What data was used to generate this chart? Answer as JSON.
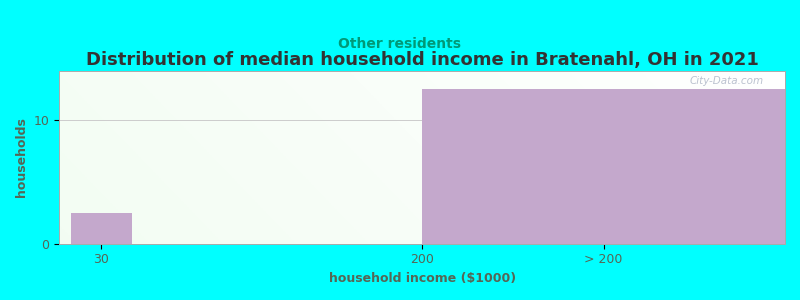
{
  "title": "Distribution of median household income in Bratenahl, OH in 2021",
  "subtitle": "Other residents",
  "xlabel": "household income ($1000)",
  "ylabel": "households",
  "background_color": "#00FFFF",
  "plot_bg_color": "#FFFFFF",
  "title_color": "#333333",
  "subtitle_color": "#009977",
  "axis_label_color": "#556655",
  "tick_label_color": "#556655",
  "watermark": "City-Data.com",
  "bar_small_value": 2.5,
  "bar_large_value": 12.5,
  "ylim": [
    0,
    14
  ],
  "yticks": [
    0,
    10
  ],
  "xtick_labels": [
    "30",
    "200",
    "> 200"
  ],
  "title_fontsize": 13,
  "subtitle_fontsize": 10,
  "axis_label_fontsize": 9,
  "tick_fontsize": 9,
  "purple_bar_color": "#C4A8CC"
}
